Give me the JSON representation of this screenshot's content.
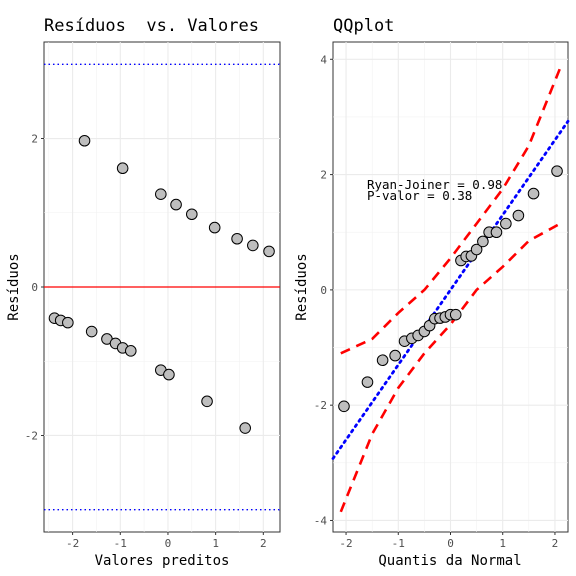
{
  "chart_data": [
    {
      "type": "scatter",
      "title": "Resíduos  vs. Valores",
      "xlabel": "Valores preditos",
      "ylabel": "Resíduos",
      "xlim": [
        -2.6,
        2.35
      ],
      "ylim": [
        -3.3,
        3.3
      ],
      "xticks": [
        -2,
        -1,
        0,
        1,
        2
      ],
      "yticks": [
        -2,
        0,
        2
      ],
      "ytick_labels": [
        "-2",
        "0",
        "2"
      ],
      "xtick_labels": [
        "-2",
        "-1",
        "0",
        "1",
        "2"
      ],
      "grid": true,
      "hlines": [
        {
          "y": 0,
          "color": "#ff0000",
          "style": "solid"
        },
        {
          "y": 3,
          "color": "#0000ff",
          "style": "dotted"
        },
        {
          "y": -3,
          "color": "#0000ff",
          "style": "dotted"
        }
      ],
      "points": {
        "x": [
          -1.75,
          -0.95,
          -0.15,
          0.17,
          0.5,
          0.98,
          1.45,
          1.78,
          2.12,
          -2.38,
          -2.25,
          -2.1,
          -1.6,
          -1.28,
          -1.1,
          -0.95,
          -0.78,
          -0.15,
          0.02,
          0.82,
          1.62
        ],
        "y": [
          1.97,
          1.6,
          1.25,
          1.11,
          0.98,
          0.8,
          0.65,
          0.56,
          0.48,
          -0.42,
          -0.45,
          -0.48,
          -0.6,
          -0.7,
          -0.76,
          -0.82,
          -0.86,
          -1.12,
          -1.18,
          -1.54,
          -1.9
        ]
      },
      "marker": {
        "fill": "#bebebe",
        "stroke": "#000000"
      }
    },
    {
      "type": "scatter",
      "title": "QQplot",
      "xlabel": "Quantis da Normal",
      "ylabel": "Resíduos",
      "xlim": [
        -2.25,
        2.25
      ],
      "ylim": [
        -4.2,
        4.3
      ],
      "xticks": [
        -2,
        -1,
        0,
        1,
        2
      ],
      "yticks": [
        -4,
        -2,
        0,
        2,
        4
      ],
      "ytick_labels": [
        "-4",
        "-2",
        "0",
        "2",
        "4"
      ],
      "xtick_labels": [
        "-2",
        "-1",
        "0",
        "1",
        "2"
      ],
      "grid": true,
      "annotations": [
        "Ryan-Joiner = 0.98",
        "P-valor = 0.38"
      ],
      "annotation_pos": {
        "x": -1.6,
        "y": 1.75
      },
      "reference_line": {
        "intercept": 0,
        "slope": 1.3,
        "color": "#0000ff",
        "style": "dotted"
      },
      "upper_band": {
        "x": [
          -2.1,
          -1.5,
          -1.0,
          -0.5,
          0,
          0.5,
          1.0,
          1.5,
          2.1
        ],
        "y": [
          -1.1,
          -0.85,
          -0.4,
          0.0,
          0.55,
          1.15,
          1.75,
          2.5,
          3.85
        ]
      },
      "lower_band": {
        "x": [
          -2.1,
          -1.5,
          -1.0,
          -0.5,
          0,
          0.5,
          1.0,
          1.5,
          2.1
        ],
        "y": [
          -3.85,
          -2.5,
          -1.7,
          -1.1,
          -0.6,
          0.0,
          0.4,
          0.85,
          1.15
        ]
      },
      "band_color": "#ff0000",
      "points": {
        "x": [
          -2.04,
          -1.59,
          -1.3,
          -1.06,
          -0.88,
          -0.74,
          -0.62,
          -0.5,
          -0.4,
          -0.3,
          -0.2,
          -0.1,
          0.0,
          0.1,
          0.2,
          0.3,
          0.4,
          0.5,
          0.62,
          0.74,
          0.88,
          1.06,
          1.3,
          1.59,
          2.04
        ],
        "y": [
          -2.02,
          -1.6,
          -1.22,
          -1.14,
          -0.89,
          -0.84,
          -0.79,
          -0.72,
          -0.62,
          -0.5,
          -0.49,
          -0.47,
          -0.43,
          -0.43,
          0.51,
          0.58,
          0.59,
          0.7,
          0.84,
          1.0,
          1.0,
          1.15,
          1.29,
          1.67,
          2.06
        ]
      },
      "marker": {
        "fill": "#bebebe",
        "stroke": "#000000"
      }
    }
  ]
}
